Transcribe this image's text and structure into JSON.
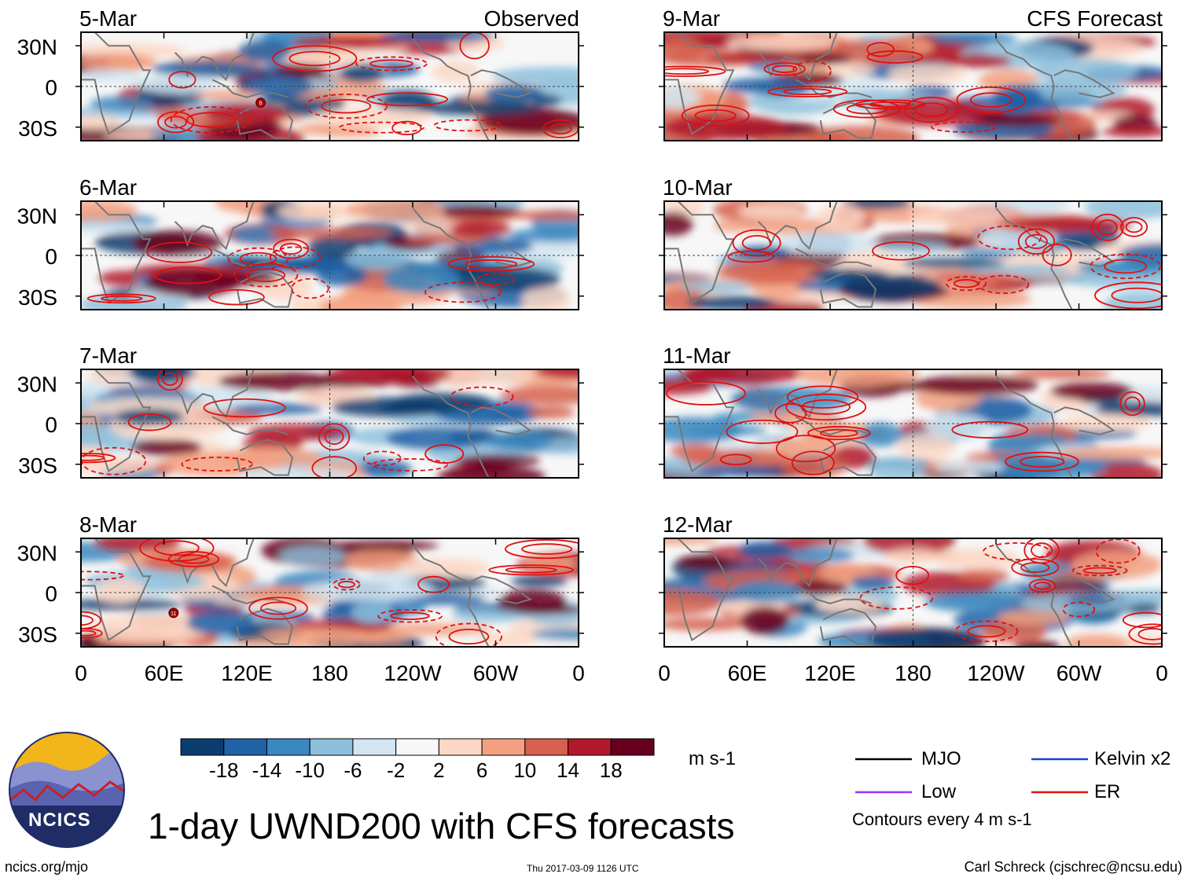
{
  "title": "1-day UWND200 with CFS forecasts",
  "footer": {
    "url": "ncics.org/mjo",
    "timestamp": "Thu 2017-03-09 1126 UTC",
    "author": "Carl Schreck (cjschrec@ncsu.edu)"
  },
  "logo": {
    "text": "NCICS"
  },
  "panel_titles": {
    "left": "Observed",
    "right": "CFS Forecast"
  },
  "colorbar": {
    "units": "m s-1",
    "colors": [
      "#0a3d6e",
      "#1f62a6",
      "#3b88c0",
      "#8dbfdc",
      "#d2e5f0",
      "#f7f7f7",
      "#fcd7c4",
      "#f2a07f",
      "#d6604d",
      "#b2182b",
      "#67001f"
    ],
    "tick_labels": [
      "-18",
      "-14",
      "-10",
      "-6",
      "-2",
      "2",
      "6",
      "10",
      "14",
      "18"
    ]
  },
  "legend": {
    "items": [
      {
        "label": "MJO",
        "color": "#000000"
      },
      {
        "label": "Kelvin x2",
        "color": "#1f3fd1"
      },
      {
        "label": "Low",
        "color": "#9b30ff"
      },
      {
        "label": "ER",
        "color": "#e01010"
      }
    ],
    "note": "Contours every 4 m s-1"
  },
  "chart_data": {
    "type": "heatmap",
    "variable": "UWND200",
    "units": "m s-1",
    "x_ticks": [
      "0",
      "60E",
      "120E",
      "180",
      "120W",
      "60W",
      "0"
    ],
    "y_ticks": [
      "30N",
      "0",
      "30S"
    ],
    "xlim": [
      0,
      360
    ],
    "ylim": [
      -40,
      40
    ],
    "observed_dates": [
      "5-Mar",
      "6-Mar",
      "7-Mar",
      "8-Mar"
    ],
    "forecast_dates": [
      "9-Mar",
      "10-Mar",
      "11-Mar",
      "12-Mar"
    ],
    "markers": [
      {
        "date": "5-Mar",
        "label": "B",
        "lon": 130,
        "lat": -12
      },
      {
        "date": "8-Mar",
        "label": "11",
        "lon": 67,
        "lat": -15
      }
    ]
  }
}
